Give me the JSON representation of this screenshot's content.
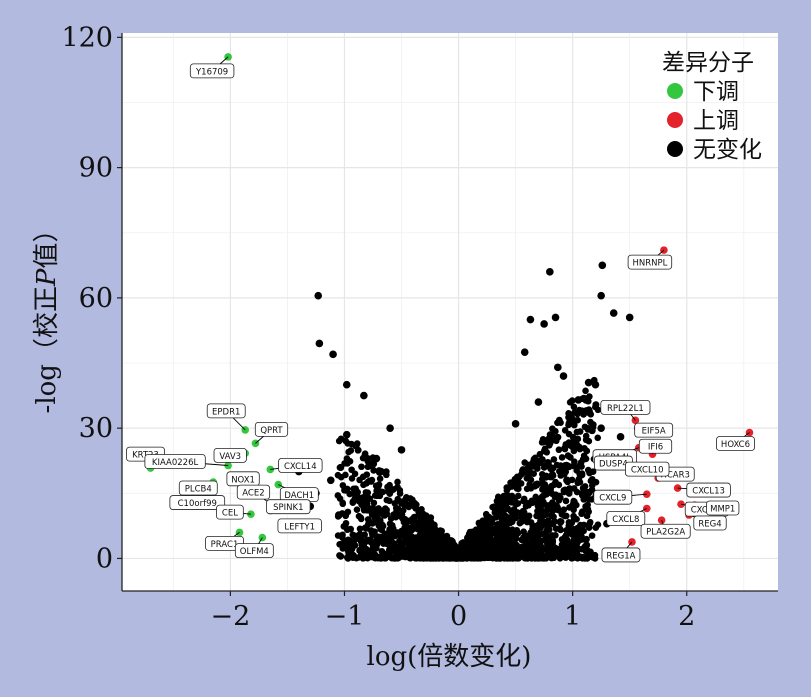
{
  "chart_data": {
    "type": "scatter",
    "title": "",
    "xlabel": "log(倍数变化)",
    "ylabel_parts": [
      "-log（校正",
      "P",
      "值）"
    ],
    "xlim": [
      -2.95,
      2.8
    ],
    "ylim": [
      -7.5,
      121
    ],
    "x_ticks": [
      {
        "value": -2,
        "label": "−2"
      },
      {
        "value": -1,
        "label": "−1"
      },
      {
        "value": 0,
        "label": "0"
      },
      {
        "value": 1,
        "label": "1"
      },
      {
        "value": 2,
        "label": "2"
      }
    ],
    "y_ticks": [
      {
        "value": 0,
        "label": "0"
      },
      {
        "value": 30,
        "label": "30"
      },
      {
        "value": 60,
        "label": "60"
      },
      {
        "value": 90,
        "label": "90"
      },
      {
        "value": 120,
        "label": "120"
      }
    ],
    "grid": true,
    "legend": {
      "title": "差异分子",
      "placement": "top-right",
      "items": [
        {
          "label": "下调",
          "color": "#33c63f"
        },
        {
          "label": "上调",
          "color": "#e3222b"
        },
        {
          "label": "无变化",
          "color": "#000000"
        }
      ]
    },
    "series": [
      {
        "name": "下调",
        "color": "#33c63f",
        "points": [
          {
            "x": -2.02,
            "y": 115.5,
            "label": "Y16709"
          },
          {
            "x": -1.87,
            "y": 29.6,
            "label": "EPDR1"
          },
          {
            "x": -1.78,
            "y": 26.5,
            "label": "QPRT"
          },
          {
            "x": -1.87,
            "y": 24.2,
            "label": "VAV3"
          },
          {
            "x": -2.7,
            "y": 20.8,
            "label": "KRT23"
          },
          {
            "x": -2.02,
            "y": 21.4,
            "label": "KIAA0226L"
          },
          {
            "x": -1.65,
            "y": 20.5,
            "label": "CXCL14"
          },
          {
            "x": -1.95,
            "y": 18.8,
            "label": "NOX1"
          },
          {
            "x": -2.15,
            "y": 17.6,
            "label": "PLCB4"
          },
          {
            "x": -1.58,
            "y": 17.0,
            "label": "DACH1"
          },
          {
            "x": -2.15,
            "y": 15.4,
            "label": "C10orf99"
          },
          {
            "x": -1.64,
            "y": 12.5,
            "label": "ACE2"
          },
          {
            "x": -1.65,
            "y": 11.0,
            "label": "SPINK1"
          },
          {
            "x": -1.82,
            "y": 10.2,
            "label": "CEL"
          },
          {
            "x": -1.55,
            "y": 7.5,
            "label": "LEFTY1"
          },
          {
            "x": -1.92,
            "y": 6.0,
            "label": "PRAC1"
          },
          {
            "x": -1.72,
            "y": 4.8,
            "label": "OLFM4"
          }
        ]
      },
      {
        "name": "上调",
        "color": "#e3222b",
        "points": [
          {
            "x": 1.8,
            "y": 71.0,
            "label": "HNRNPL"
          },
          {
            "x": 1.55,
            "y": 31.8,
            "label": "RPL22L1"
          },
          {
            "x": 1.57,
            "y": 30.0,
            "label": "EIF5A"
          },
          {
            "x": 2.55,
            "y": 29.0,
            "label": "HOXC6"
          },
          {
            "x": 1.58,
            "y": 25.5,
            "label": "HSPA4L"
          },
          {
            "x": 1.7,
            "y": 24.0,
            "label": "IFI6"
          },
          {
            "x": 1.55,
            "y": 21.5,
            "label": "DUSP4"
          },
          {
            "x": 1.68,
            "y": 20.8,
            "label": "HCAR3"
          },
          {
            "x": 1.75,
            "y": 18.5,
            "label": "CXCL10"
          },
          {
            "x": 1.92,
            "y": 16.2,
            "label": "CXCL13"
          },
          {
            "x": 1.65,
            "y": 14.8,
            "label": "CXCL9"
          },
          {
            "x": 1.95,
            "y": 12.5,
            "label": "CXCL11"
          },
          {
            "x": 2.07,
            "y": 12.3,
            "label": "MMP1"
          },
          {
            "x": 1.65,
            "y": 11.5,
            "label": "CXCL8"
          },
          {
            "x": 2.02,
            "y": 10.0,
            "label": "REG4"
          },
          {
            "x": 1.78,
            "y": 8.8,
            "label": "PLA2G2A"
          },
          {
            "x": 1.52,
            "y": 3.8,
            "label": "REG1A"
          }
        ]
      },
      {
        "name": "无变化",
        "color": "#000000",
        "points": [
          {
            "x": -1.23,
            "y": 60.5
          },
          {
            "x": -1.22,
            "y": 49.5
          },
          {
            "x": -1.1,
            "y": 47.0
          },
          {
            "x": -0.98,
            "y": 40.0
          },
          {
            "x": -0.98,
            "y": 28.5
          },
          {
            "x": -0.83,
            "y": 37.5
          },
          {
            "x": -0.9,
            "y": 26.0
          },
          {
            "x": -0.72,
            "y": 23.0
          },
          {
            "x": -0.68,
            "y": 20.0
          },
          {
            "x": -0.6,
            "y": 30.0
          },
          {
            "x": -0.5,
            "y": 25.0
          },
          {
            "x": -1.12,
            "y": 18.0
          },
          {
            "x": -1.25,
            "y": 15.0
          },
          {
            "x": -1.3,
            "y": 12.0
          },
          {
            "x": -1.05,
            "y": 10.0
          },
          {
            "x": -0.8,
            "y": 14.0
          },
          {
            "x": -0.65,
            "y": 10.0
          },
          {
            "x": -1.4,
            "y": 20.0
          },
          {
            "x": 0.8,
            "y": 66.0
          },
          {
            "x": 0.85,
            "y": 55.5
          },
          {
            "x": 0.75,
            "y": 54.0
          },
          {
            "x": 0.63,
            "y": 55.0
          },
          {
            "x": 1.26,
            "y": 67.5
          },
          {
            "x": 1.25,
            "y": 60.5
          },
          {
            "x": 1.36,
            "y": 56.5
          },
          {
            "x": 1.5,
            "y": 55.5
          },
          {
            "x": 0.58,
            "y": 47.5
          },
          {
            "x": 0.87,
            "y": 44.0
          },
          {
            "x": 0.92,
            "y": 42.0
          },
          {
            "x": 1.14,
            "y": 40.5
          },
          {
            "x": 1.2,
            "y": 40.0
          },
          {
            "x": 0.7,
            "y": 36.0
          },
          {
            "x": 1.05,
            "y": 36.5
          },
          {
            "x": 1.33,
            "y": 35.0
          },
          {
            "x": 1.25,
            "y": 30.0
          },
          {
            "x": 0.5,
            "y": 31.0
          },
          {
            "x": 1.42,
            "y": 28.0
          },
          {
            "x": 1.35,
            "y": 22.0
          },
          {
            "x": 0.95,
            "y": 18.0
          },
          {
            "x": 1.2,
            "y": 14.0
          },
          {
            "x": 1.3,
            "y": 8.0
          }
        ]
      }
    ],
    "unlabeled_cloud_note_free": true
  }
}
